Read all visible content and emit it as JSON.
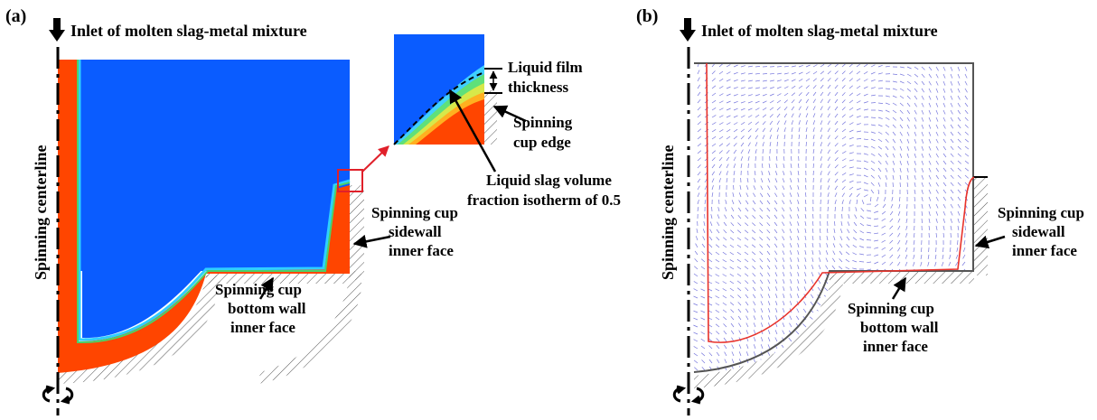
{
  "panel_a": {
    "tag": "(a)",
    "inlet_label": "Inlet of molten slag-metal mixture",
    "centerline_label": "Spinning centerline",
    "sidewall_label": [
      "Spinning cup",
      "sidewall",
      "inner face"
    ],
    "bottom_label": [
      "Spinning cup",
      "bottom wall",
      "inner face"
    ],
    "film_label": [
      "Liquid film",
      "thickness"
    ],
    "edge_label": [
      "Spinning",
      "cup edge"
    ],
    "isotherm_label": [
      "Liquid slag volume",
      "fraction isotherm of 0.5"
    ]
  },
  "panel_b": {
    "tag": "(b)",
    "inlet_label": "Inlet of molten slag-metal mixture",
    "centerline_label": "Spinning centerline",
    "sidewall_label": [
      "Spinning cup",
      "sidewall",
      "inner face"
    ],
    "bottom_label": [
      "Spinning cup",
      "bottom wall",
      "inner face"
    ]
  },
  "colors": {
    "slag_region": "#ff4500",
    "gas_region": "#0a5cff",
    "interface_green": "#4ad16a",
    "interface_cyan": "#2fd0ff",
    "velocity_vectors": "#7777dd",
    "interface_line_b": "#e8322a",
    "zoom_box": "#e0202a"
  },
  "icons": {
    "inlet_arrow": "down-arrow-icon",
    "rotation_symbol": "rotation-icon"
  }
}
